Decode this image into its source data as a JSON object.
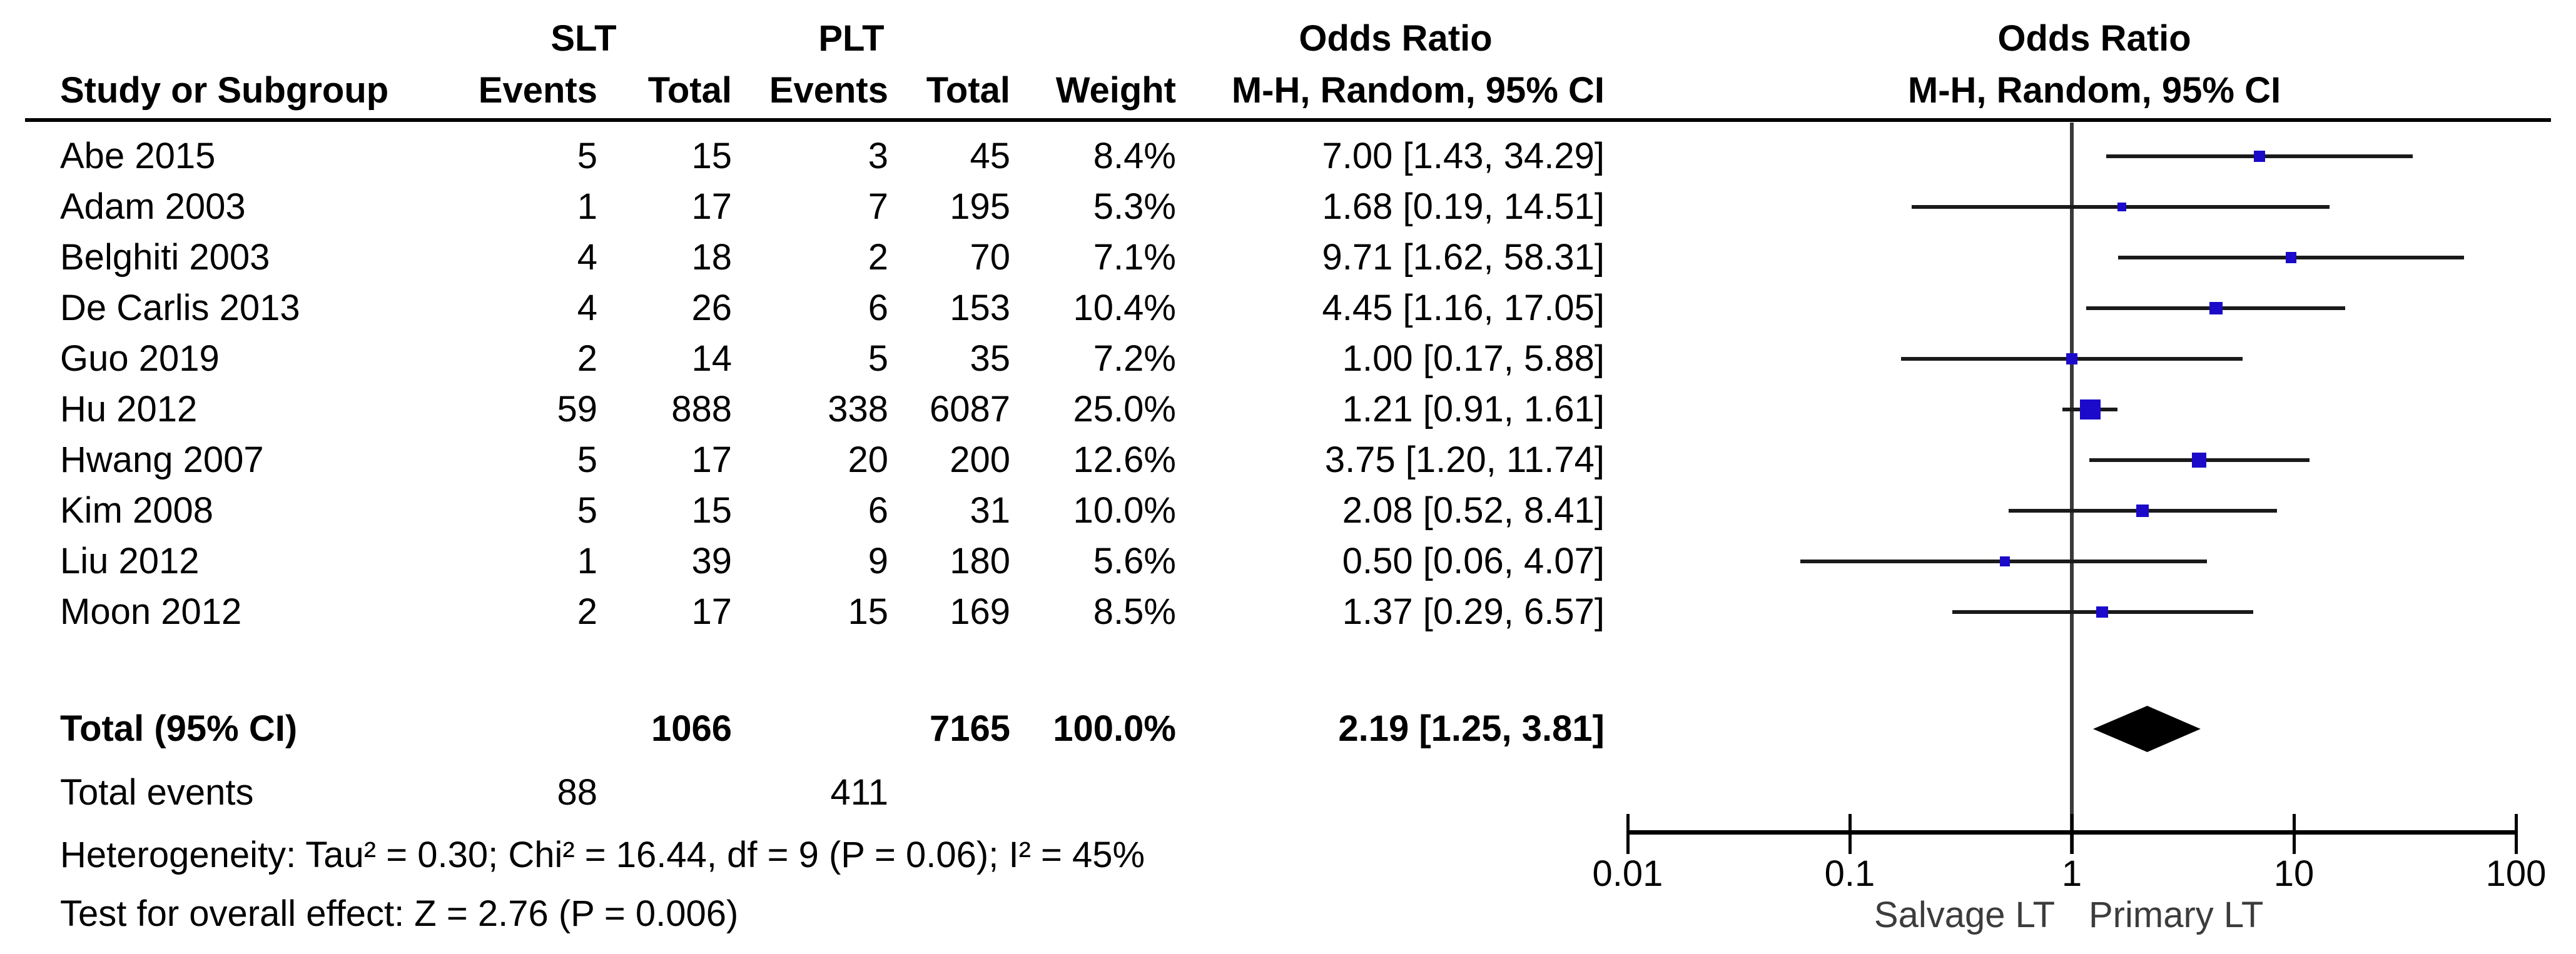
{
  "header": {
    "group1": "SLT",
    "group2": "PLT",
    "or_text_col_title": "Odds Ratio",
    "or_plot_col_title": "Odds Ratio",
    "study_col": "Study or Subgroup",
    "events_col": "Events",
    "total_col": "Total",
    "weight_col": "Weight",
    "mh_col": "M-H, Random, 95% CI"
  },
  "chart_data": {
    "type": "forest",
    "x_scale": "log10",
    "xlim": [
      0.01,
      100
    ],
    "x_ticks": [
      0.01,
      0.1,
      1,
      10,
      100
    ],
    "x_tick_labels": [
      "0.01",
      "0.1",
      "1",
      "10",
      "100"
    ],
    "reference_line": 1,
    "favours_left": "Salvage LT",
    "favours_right": "Primary LT",
    "studies": [
      {
        "name": "Abe 2015",
        "slt_events": "5",
        "slt_total": "15",
        "plt_events": "3",
        "plt_total": "45",
        "weight": "8.4%",
        "weight_value": 8.4,
        "or": 7.0,
        "ci_low": 1.43,
        "ci_high": 34.29,
        "or_label": "7.00 [1.43, 34.29]"
      },
      {
        "name": "Adam 2003",
        "slt_events": "1",
        "slt_total": "17",
        "plt_events": "7",
        "plt_total": "195",
        "weight": "5.3%",
        "weight_value": 5.3,
        "or": 1.68,
        "ci_low": 0.19,
        "ci_high": 14.51,
        "or_label": "1.68 [0.19, 14.51]"
      },
      {
        "name": "Belghiti 2003",
        "slt_events": "4",
        "slt_total": "18",
        "plt_events": "2",
        "plt_total": "70",
        "weight": "7.1%",
        "weight_value": 7.1,
        "or": 9.71,
        "ci_low": 1.62,
        "ci_high": 58.31,
        "or_label": "9.71 [1.62, 58.31]"
      },
      {
        "name": "De Carlis 2013",
        "slt_events": "4",
        "slt_total": "26",
        "plt_events": "6",
        "plt_total": "153",
        "weight": "10.4%",
        "weight_value": 10.4,
        "or": 4.45,
        "ci_low": 1.16,
        "ci_high": 17.05,
        "or_label": "4.45 [1.16, 17.05]"
      },
      {
        "name": "Guo 2019",
        "slt_events": "2",
        "slt_total": "14",
        "plt_events": "5",
        "plt_total": "35",
        "weight": "7.2%",
        "weight_value": 7.2,
        "or": 1.0,
        "ci_low": 0.17,
        "ci_high": 5.88,
        "or_label": "1.00 [0.17, 5.88]"
      },
      {
        "name": "Hu 2012",
        "slt_events": "59",
        "slt_total": "888",
        "plt_events": "338",
        "plt_total": "6087",
        "weight": "25.0%",
        "weight_value": 25.0,
        "or": 1.21,
        "ci_low": 0.91,
        "ci_high": 1.61,
        "or_label": "1.21 [0.91, 1.61]"
      },
      {
        "name": "Hwang 2007",
        "slt_events": "5",
        "slt_total": "17",
        "plt_events": "20",
        "plt_total": "200",
        "weight": "12.6%",
        "weight_value": 12.6,
        "or": 3.75,
        "ci_low": 1.2,
        "ci_high": 11.74,
        "or_label": "3.75 [1.20, 11.74]"
      },
      {
        "name": "Kim 2008",
        "slt_events": "5",
        "slt_total": "15",
        "plt_events": "6",
        "plt_total": "31",
        "weight": "10.0%",
        "weight_value": 10.0,
        "or": 2.08,
        "ci_low": 0.52,
        "ci_high": 8.41,
        "or_label": "2.08 [0.52, 8.41]"
      },
      {
        "name": "Liu 2012",
        "slt_events": "1",
        "slt_total": "39",
        "plt_events": "9",
        "plt_total": "180",
        "weight": "5.6%",
        "weight_value": 5.6,
        "or": 0.5,
        "ci_low": 0.06,
        "ci_high": 4.07,
        "or_label": "0.50 [0.06, 4.07]"
      },
      {
        "name": "Moon 2012",
        "slt_events": "2",
        "slt_total": "17",
        "plt_events": "15",
        "plt_total": "169",
        "weight": "8.5%",
        "weight_value": 8.5,
        "or": 1.37,
        "ci_low": 0.29,
        "ci_high": 6.57,
        "or_label": "1.37 [0.29, 6.57]"
      }
    ],
    "total": {
      "label": "Total (95% CI)",
      "slt_total": "1066",
      "plt_total": "7165",
      "weight": "100.0%",
      "or": 2.19,
      "ci_low": 1.25,
      "ci_high": 3.81,
      "or_label": "2.19 [1.25, 3.81]"
    },
    "total_events": {
      "label": "Total events",
      "slt_events": "88",
      "plt_events": "411"
    },
    "heterogeneity": "Heterogeneity: Tau² = 0.30; Chi² = 16.44, df = 9 (P = 0.06); I² = 45%",
    "overall_effect": "Test for overall effect: Z = 2.76 (P = 0.006)"
  },
  "colors": {
    "square": "#1B0AC9",
    "ci_line": "#1a1a1a",
    "diamond": "#000000",
    "axis": "#000000",
    "reference_line": "#3a3a3a",
    "text": "#000000"
  }
}
